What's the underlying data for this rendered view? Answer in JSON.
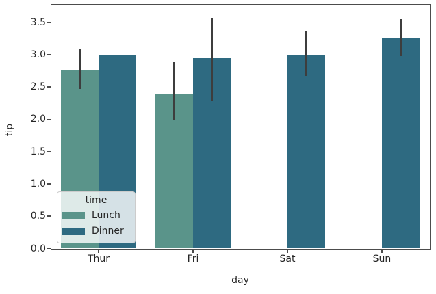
{
  "chart_data": {
    "type": "bar",
    "title": "",
    "xlabel": "day",
    "ylabel": "tip",
    "categories": [
      "Thur",
      "Fri",
      "Sat",
      "Sun"
    ],
    "series": [
      {
        "name": "Lunch",
        "color": "#5a948a",
        "values": [
          2.77,
          2.38,
          null,
          null
        ],
        "ci_low": [
          2.47,
          1.98,
          null,
          null
        ],
        "ci_high": [
          3.08,
          2.89,
          null,
          null
        ]
      },
      {
        "name": "Dinner",
        "color": "#2e6a81",
        "values": [
          3.0,
          2.94,
          2.99,
          3.26
        ],
        "ci_low": [
          null,
          2.28,
          2.67,
          2.98
        ],
        "ci_high": [
          null,
          3.57,
          3.36,
          3.55
        ]
      }
    ],
    "legend": {
      "title": "time",
      "position": "lower left"
    },
    "ylim": [
      0,
      3.77
    ],
    "yticks": [
      0.0,
      0.5,
      1.0,
      1.5,
      2.0,
      2.5,
      3.0,
      3.5
    ],
    "error_bar_color": "#3d3d3d",
    "spine_color": "#4c4c4c",
    "grid": false
  }
}
